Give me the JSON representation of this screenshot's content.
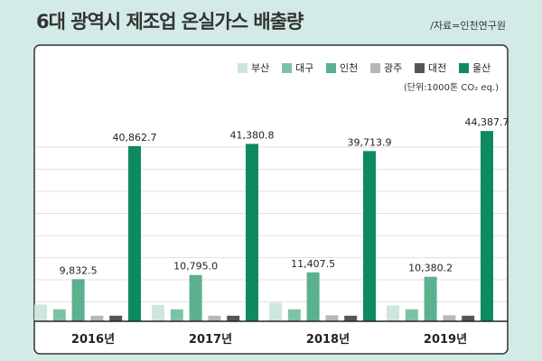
{
  "header": {
    "title": "6대 광역시 제조업 온실가스 배출량",
    "source": "/자료=인천연구원"
  },
  "chart_data": {
    "type": "bar",
    "title": "6대 광역시 제조업 온실가스 배출량",
    "unit": "(단위:1000톤 CO₂ eq.)",
    "categories": [
      "2016년",
      "2017년",
      "2018년",
      "2019년"
    ],
    "ylim": [
      0,
      48000
    ],
    "grid": true,
    "legend_position": "top-right",
    "series": [
      {
        "name": "부산",
        "color": "#cfe6dc",
        "values": [
          3900,
          3800,
          4300,
          3700
        ],
        "labels": [
          null,
          null,
          null,
          null
        ]
      },
      {
        "name": "대구",
        "color": "#7cc3a6",
        "values": [
          2800,
          2800,
          2800,
          2800
        ],
        "labels": [
          null,
          null,
          null,
          null
        ]
      },
      {
        "name": "인천",
        "color": "#5bb08d",
        "values": [
          9832.5,
          10795.0,
          11407.5,
          10380.2
        ],
        "labels": [
          "9,832.5",
          "10,795.0",
          "11,407.5",
          "10,380.2"
        ]
      },
      {
        "name": "광주",
        "color": "#b7b7b7",
        "values": [
          1300,
          1300,
          1400,
          1400
        ],
        "labels": [
          null,
          null,
          null,
          null
        ]
      },
      {
        "name": "대전",
        "color": "#555555",
        "values": [
          1300,
          1300,
          1300,
          1300
        ],
        "labels": [
          null,
          null,
          null,
          null
        ]
      },
      {
        "name": "울산",
        "color": "#0e8a5f",
        "values": [
          40862.7,
          41380.8,
          39713.9,
          44387.7
        ],
        "labels": [
          "40,862.7",
          "41,380.8",
          "39,713.9",
          "44,387.7"
        ]
      }
    ]
  }
}
